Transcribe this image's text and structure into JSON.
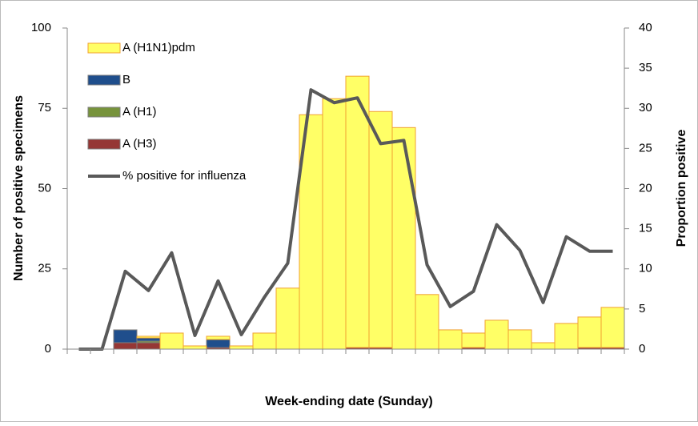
{
  "chart_data": {
    "type": "bar",
    "x_label": "Week-ending date (Sunday)",
    "y_label": "Number of positive specimens",
    "y2_label": "Proportion positive",
    "categories": [
      null,
      null,
      null,
      null,
      null,
      null,
      null,
      null,
      null,
      null,
      null,
      null,
      null,
      null,
      null,
      null,
      null,
      null,
      null,
      null,
      null,
      null,
      null,
      null
    ],
    "stacked": true,
    "series": [
      {
        "name": "A (H3)",
        "color": "#953735",
        "values": [
          0,
          0,
          2,
          2,
          0,
          0,
          0.5,
          0,
          0,
          0,
          0,
          0,
          0.5,
          0.5,
          0,
          0,
          0,
          0.5,
          0,
          0,
          0,
          0,
          0.5,
          0.5
        ]
      },
      {
        "name": "A (H1)",
        "color": "#77933c",
        "values": [
          0,
          0,
          0,
          0.5,
          0,
          0,
          0,
          0,
          0,
          0,
          0,
          0,
          0,
          0,
          0,
          0,
          0,
          0,
          0,
          0,
          0,
          0,
          0,
          0
        ]
      },
      {
        "name": "B",
        "color": "#1f4e8c",
        "values": [
          0,
          0,
          4,
          1,
          0,
          0,
          2.5,
          0,
          0,
          0,
          0,
          0,
          0,
          0,
          0,
          0,
          0,
          0,
          0,
          0,
          0,
          0,
          0,
          0
        ]
      },
      {
        "name": "A (H1N1)pdm",
        "color": "#ffff66",
        "values": [
          0,
          0,
          0,
          0.5,
          5,
          1,
          1,
          1,
          5,
          19,
          73,
          78,
          84.5,
          73.5,
          69,
          17,
          6,
          4.5,
          9,
          6,
          2,
          8,
          9.5,
          12.5
        ]
      },
      {
        "name": "% positive for influenza",
        "type": "line",
        "axis": "y2",
        "color": "#595959",
        "values": [
          0,
          0,
          9.7,
          7.3,
          12,
          1.7,
          8.5,
          1.8,
          6.5,
          10.7,
          32.3,
          30.7,
          31.3,
          25.6,
          26,
          10.5,
          5.3,
          7.2,
          15.5,
          12.3,
          5.8,
          14,
          12.2,
          12.2
        ]
      }
    ],
    "legend_order": [
      3,
      2,
      1,
      0,
      4
    ],
    "ylim": [
      0,
      100
    ],
    "yticks": [
      0,
      25,
      50,
      75,
      100
    ],
    "y2lim": [
      0,
      40
    ],
    "y2ticks": [
      0,
      5,
      10,
      15,
      20,
      25,
      30,
      35,
      40
    ]
  }
}
